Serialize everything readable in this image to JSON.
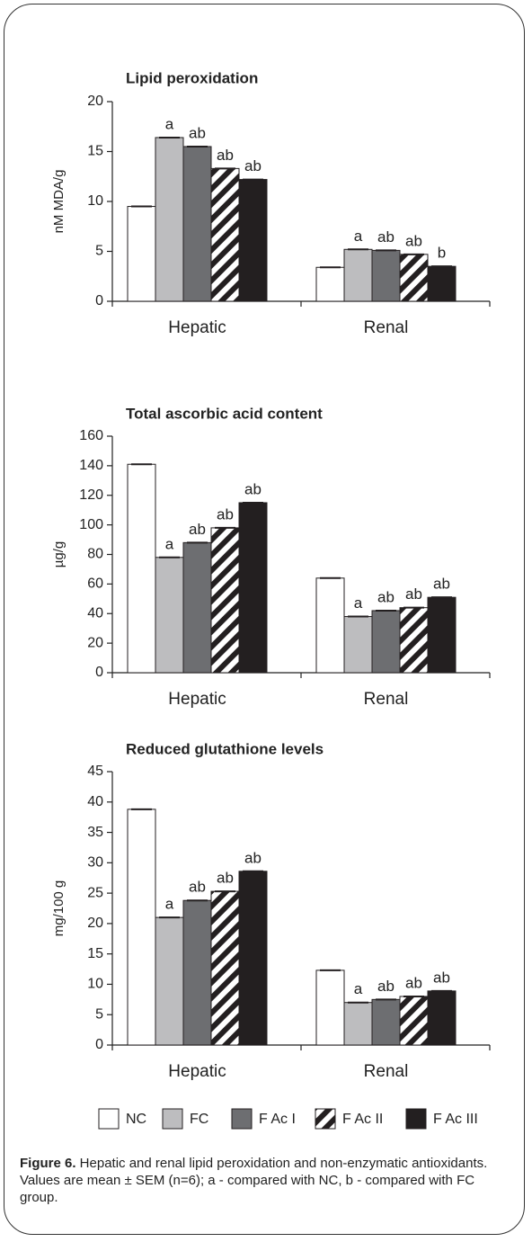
{
  "legend": [
    {
      "name": "NC",
      "color": "#ffffff",
      "pattern": "solid"
    },
    {
      "name": "FC",
      "color": "#bdbdbf",
      "pattern": "solid"
    },
    {
      "name": "F Ac I",
      "color": "#6d6e71",
      "pattern": "solid"
    },
    {
      "name": "F Ac II",
      "color": "#231f20",
      "pattern": "hatch"
    },
    {
      "name": "F Ac III",
      "color": "#231f20",
      "pattern": "solid"
    }
  ],
  "chart_data": [
    {
      "type": "bar",
      "title": "Lipid peroxidation",
      "y_label": "nM MDA/g",
      "categories": [
        "Hepatic",
        "Renal"
      ],
      "ylim": [
        0,
        20
      ],
      "yticks": [
        0,
        5,
        10,
        15,
        20
      ],
      "series": [
        {
          "values": [
            9.5,
            3.4
          ],
          "labels": [
            null,
            null
          ]
        },
        {
          "values": [
            16.4,
            5.2
          ],
          "labels": [
            "a",
            "a"
          ]
        },
        {
          "values": [
            15.5,
            5.1
          ],
          "labels": [
            "ab",
            "ab"
          ]
        },
        {
          "values": [
            13.3,
            4.7
          ],
          "labels": [
            "ab",
            "ab"
          ]
        },
        {
          "values": [
            12.2,
            3.5
          ],
          "labels": [
            "ab",
            "b"
          ]
        }
      ]
    },
    {
      "type": "bar",
      "title": "Total ascorbic acid content",
      "y_label": "µg/g",
      "categories": [
        "Hepatic",
        "Renal"
      ],
      "ylim": [
        0,
        160
      ],
      "yticks": [
        0,
        20,
        40,
        60,
        80,
        100,
        120,
        140,
        160
      ],
      "series": [
        {
          "values": [
            141,
            64
          ],
          "labels": [
            null,
            null
          ]
        },
        {
          "values": [
            78,
            38
          ],
          "labels": [
            "a",
            "a"
          ]
        },
        {
          "values": [
            88,
            42
          ],
          "labels": [
            "ab",
            "ab"
          ]
        },
        {
          "values": [
            98,
            44
          ],
          "labels": [
            "ab",
            "ab"
          ]
        },
        {
          "values": [
            115,
            51
          ],
          "labels": [
            "ab",
            "ab"
          ]
        }
      ]
    },
    {
      "type": "bar",
      "title": "Reduced glutathione levels",
      "y_label": "mg/100 g",
      "categories": [
        "Hepatic",
        "Renal"
      ],
      "ylim": [
        0,
        45
      ],
      "yticks": [
        0,
        5,
        10,
        15,
        20,
        25,
        30,
        35,
        40,
        45
      ],
      "series": [
        {
          "values": [
            38.8,
            12.3
          ],
          "labels": [
            null,
            null
          ]
        },
        {
          "values": [
            21,
            7
          ],
          "labels": [
            "a",
            "a"
          ]
        },
        {
          "values": [
            23.8,
            7.5
          ],
          "labels": [
            "ab",
            "ab"
          ]
        },
        {
          "values": [
            25.3,
            8
          ],
          "labels": [
            "ab",
            "ab"
          ]
        },
        {
          "values": [
            28.6,
            8.9
          ],
          "labels": [
            "ab",
            "ab"
          ]
        }
      ]
    }
  ],
  "caption": {
    "label": "Figure 6.",
    "text": " Hepatic and renal lipid peroxidation and non-enzymatic antioxidants. Values are mean ± SEM (n=6); a - compared with NC, b - compared with FC group."
  }
}
